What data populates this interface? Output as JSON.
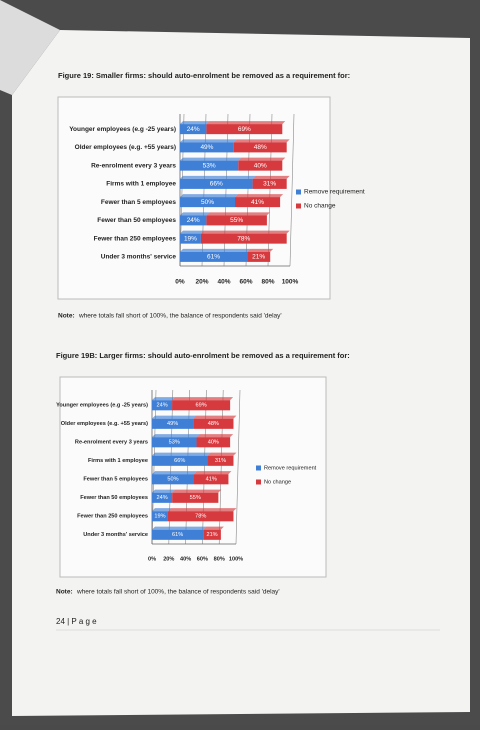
{
  "chart_data": [
    {
      "type": "stacked-barh",
      "title": "Figure 19: Smaller firms: should auto-enrolment be removed as a requirement for:",
      "categories": [
        "Younger employees (e.g -25 years)",
        "Older employees (e.g. +55 years)",
        "Re-enrolment every 3 years",
        "Firms with 1 employee",
        "Fewer than 5 employees",
        "Fewer than 50 employees",
        "Fewer than 250 employees",
        "Under 3 months' service"
      ],
      "series": [
        {
          "name": "Remove requirement",
          "color": "#3f7fd6",
          "values": [
            24,
            49,
            53,
            66,
            50,
            24,
            19,
            61
          ],
          "value_labels": [
            "24%",
            "49%",
            "53%",
            "66%",
            "50%",
            "24%",
            "19%",
            "61%"
          ]
        },
        {
          "name": "No change",
          "color": "#d63a3f",
          "values": [
            69,
            48,
            40,
            31,
            41,
            55,
            78,
            21
          ],
          "value_labels": [
            "69%",
            "48%",
            "40%",
            "31%",
            "41%",
            "55%",
            "78%",
            "21%"
          ]
        }
      ],
      "xlim": [
        0,
        100
      ],
      "xticks": [
        {
          "value": 0,
          "label": "0%"
        },
        {
          "value": 20,
          "label": "20%"
        },
        {
          "value": 40,
          "label": "40%"
        },
        {
          "value": 60,
          "label": "60%"
        },
        {
          "value": 80,
          "label": "80%"
        },
        {
          "value": 100,
          "label": "100%"
        }
      ],
      "grid": true,
      "legend": "right",
      "note_label": "Note:",
      "note": "where totals fall short of 100%, the balance of respondents said 'delay'"
    },
    {
      "type": "stacked-barh",
      "title": "Figure 19B: Larger firms: should auto-enrolment be removed as a requirement for:",
      "categories": [
        "Younger employees (e.g -25 years)",
        "Older employees (e.g. +55 years)",
        "Re-enrolment every 3 years",
        "Firms with 1 employee",
        "Fewer than 5 employees",
        "Fewer than 50 employees",
        "Fewer than 250 employees",
        "Under 3 months' service"
      ],
      "series": [
        {
          "name": "Remove requirement",
          "color": "#3f7fd6",
          "values": [
            24,
            49,
            53,
            66,
            50,
            24,
            19,
            61
          ],
          "value_labels": [
            "24%",
            "49%",
            "53%",
            "66%",
            "50%",
            "24%",
            "19%",
            "61%"
          ]
        },
        {
          "name": "No change",
          "color": "#d63a3f",
          "values": [
            69,
            48,
            40,
            31,
            41,
            55,
            78,
            21
          ],
          "value_labels": [
            "69%",
            "48%",
            "40%",
            "31%",
            "41%",
            "55%",
            "78%",
            "21%"
          ]
        }
      ],
      "xlim": [
        0,
        100
      ],
      "xticks": [
        {
          "value": 0,
          "label": "0%"
        },
        {
          "value": 20,
          "label": "20%"
        },
        {
          "value": 40,
          "label": "40%"
        },
        {
          "value": 60,
          "label": "60%"
        },
        {
          "value": 80,
          "label": "80%"
        },
        {
          "value": 100,
          "label": "100%"
        }
      ],
      "grid": true,
      "legend": "right",
      "note_label": "Note:",
      "note": "where totals fall short of 100%, the balance of respondents said 'delay'"
    }
  ],
  "footer": {
    "page": "24 | P a g e"
  }
}
